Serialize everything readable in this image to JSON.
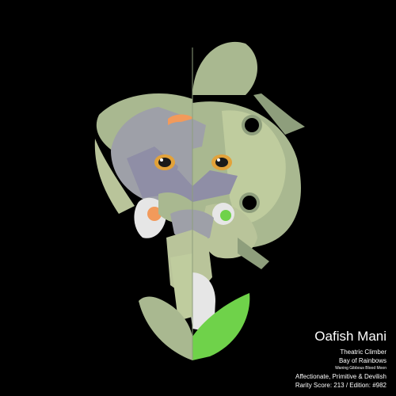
{
  "card": {
    "name": "Oafish Mani",
    "trait_1": "Theatric Climber",
    "trait_2": "Bay of Rainbows",
    "moon": "Waning Gibbous Blood Moon",
    "temperament": "Affectionate, Primitive & Devilish",
    "rarity": "Rarity Score: 213 / Edition: #982"
  },
  "colors": {
    "background": "#000000",
    "sage": "#a9b890",
    "sage_light": "#bfcc9e",
    "sage_dark": "#8e9e7c",
    "gray": "#9ea0a8",
    "gray_light": "#bcbec4",
    "lavender": "#8f8ea6",
    "white": "#e6e6e6",
    "lime": "#6fd24a",
    "orange": "#f29a5b",
    "eye_yellow": "#e2a23a"
  }
}
